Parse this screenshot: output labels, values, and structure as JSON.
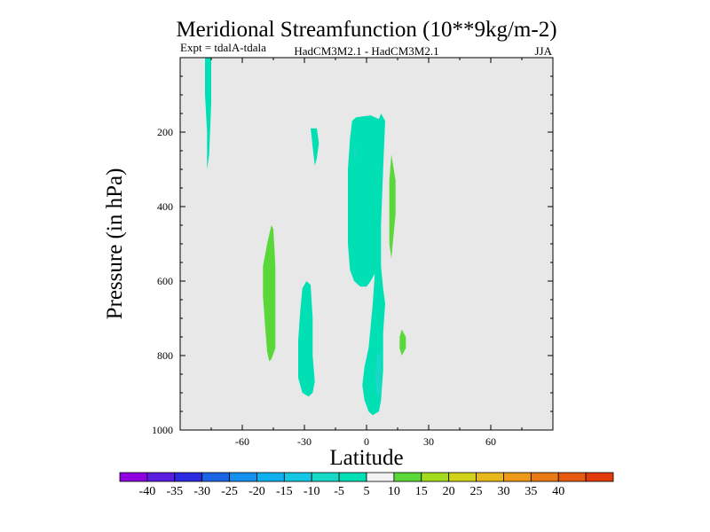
{
  "chart_data": {
    "type": "contour",
    "title": "Meridional Streamfunction (10**9kg/m-2)",
    "subtitle_left": "Expt = tdalA-tdala",
    "subtitle_center": "HadCM3M2.1 - HadCM3M2.1",
    "subtitle_right": "JJA",
    "xlabel": "Latitude",
    "ylabel": "Pressure (in hPa)",
    "xlim": [
      -90,
      90
    ],
    "ylim": [
      1000,
      0
    ],
    "x_ticks": [
      {
        "value": -60,
        "label": "-60"
      },
      {
        "value": -30,
        "label": "-30"
      },
      {
        "value": 0,
        "label": "0"
      },
      {
        "value": 30,
        "label": "30"
      },
      {
        "value": 60,
        "label": "60"
      }
    ],
    "y_ticks": [
      {
        "value": 200,
        "label": "200"
      },
      {
        "value": 400,
        "label": "400"
      },
      {
        "value": 600,
        "label": "600"
      },
      {
        "value": 800,
        "label": "800"
      },
      {
        "value": 1000,
        "label": "1000"
      }
    ],
    "colorbar": {
      "colors": [
        "#8f00e0",
        "#5b1ee0",
        "#2a2ae0",
        "#1a64e6",
        "#1590ee",
        "#10b0ee",
        "#16c7e4",
        "#18d8c6",
        "#00e0b4",
        "#f2f2f2",
        "#5ad83a",
        "#a3db1e",
        "#d2d21a",
        "#e8b81a",
        "#ec9a18",
        "#ea7a16",
        "#e65a10",
        "#e23a0a"
      ],
      "labels": [
        "-40",
        "-35",
        "-30",
        "-25",
        "-20",
        "-15",
        "-10",
        "-5",
        "5",
        "10",
        "15",
        "20",
        "25",
        "30",
        "35",
        "40"
      ]
    },
    "regions": [
      {
        "name": "band-minus5-to-minus10",
        "color": "#00e0b4",
        "points": [
          [
            -78,
            0
          ],
          [
            -75,
            0
          ],
          [
            -75,
            120
          ],
          [
            -76,
            260
          ],
          [
            -77,
            300
          ],
          [
            -77,
            200
          ],
          [
            -78,
            100
          ]
        ]
      },
      {
        "name": "band-minus5-to-minus10",
        "color": "#00e0b4",
        "points": [
          [
            -27,
            190
          ],
          [
            -24,
            190
          ],
          [
            -23,
            230
          ],
          [
            -24,
            270
          ],
          [
            -25,
            290
          ],
          [
            -26,
            240
          ]
        ]
      },
      {
        "name": "band-minus5-to-minus10",
        "color": "#00e0b4",
        "points": [
          [
            -7,
            170
          ],
          [
            -5,
            160
          ],
          [
            2,
            155
          ],
          [
            6,
            165
          ],
          [
            7,
            150
          ],
          [
            9,
            170
          ],
          [
            8,
            300
          ],
          [
            7,
            450
          ],
          [
            7,
            560
          ],
          [
            8,
            620
          ],
          [
            9,
            660
          ],
          [
            8,
            740
          ],
          [
            8,
            840
          ],
          [
            7,
            920
          ],
          [
            6,
            950
          ],
          [
            3,
            960
          ],
          [
            1,
            950
          ],
          [
            -1,
            920
          ],
          [
            -2,
            880
          ],
          [
            -1,
            830
          ],
          [
            1,
            780
          ],
          [
            2,
            720
          ],
          [
            3,
            660
          ],
          [
            4,
            580
          ],
          [
            2,
            600
          ],
          [
            0,
            615
          ],
          [
            -3,
            615
          ],
          [
            -6,
            600
          ],
          [
            -8,
            570
          ],
          [
            -9,
            500
          ],
          [
            -9,
            400
          ],
          [
            -9,
            300
          ],
          [
            -8,
            220
          ]
        ]
      },
      {
        "name": "band-minus10-to-minus15",
        "color": "#18d8c6",
        "points": [
          [
            -6,
            240
          ],
          [
            -5,
            240
          ],
          [
            -5,
            270
          ],
          [
            -6,
            270
          ]
        ]
      },
      {
        "name": "band-minus10-to-minus15",
        "color": "#18d8c6",
        "points": [
          [
            5,
            800
          ],
          [
            7,
            790
          ],
          [
            7,
            900
          ],
          [
            5,
            910
          ],
          [
            4,
            860
          ]
        ]
      },
      {
        "name": "band-minus5-to-minus10",
        "color": "#00e0b4",
        "points": [
          [
            -31,
            620
          ],
          [
            -29,
            600
          ],
          [
            -27,
            610
          ],
          [
            -26,
            700
          ],
          [
            -26,
            800
          ],
          [
            -25,
            870
          ],
          [
            -26,
            900
          ],
          [
            -28,
            910
          ],
          [
            -31,
            900
          ],
          [
            -33,
            860
          ],
          [
            -33,
            760
          ],
          [
            -32,
            680
          ]
        ]
      },
      {
        "name": "band-5-to-10",
        "color": "#5ad83a",
        "points": [
          [
            -46,
            450
          ],
          [
            -45,
            460
          ],
          [
            -44,
            560
          ],
          [
            -44,
            680
          ],
          [
            -44,
            780
          ],
          [
            -46,
            810
          ],
          [
            -47,
            815
          ],
          [
            -48,
            790
          ],
          [
            -49,
            720
          ],
          [
            -50,
            640
          ],
          [
            -50,
            560
          ],
          [
            -48,
            500
          ]
        ]
      },
      {
        "name": "band-5-to-10",
        "color": "#5ad83a",
        "points": [
          [
            12,
            260
          ],
          [
            14,
            330
          ],
          [
            14,
            420
          ],
          [
            13,
            480
          ],
          [
            12,
            540
          ],
          [
            11,
            500
          ],
          [
            11,
            420
          ],
          [
            11,
            330
          ]
        ]
      },
      {
        "name": "band-5-to-10",
        "color": "#5ad83a",
        "points": [
          [
            17,
            730
          ],
          [
            19,
            750
          ],
          [
            19,
            780
          ],
          [
            17,
            800
          ],
          [
            16,
            780
          ],
          [
            16,
            750
          ]
        ]
      }
    ]
  }
}
